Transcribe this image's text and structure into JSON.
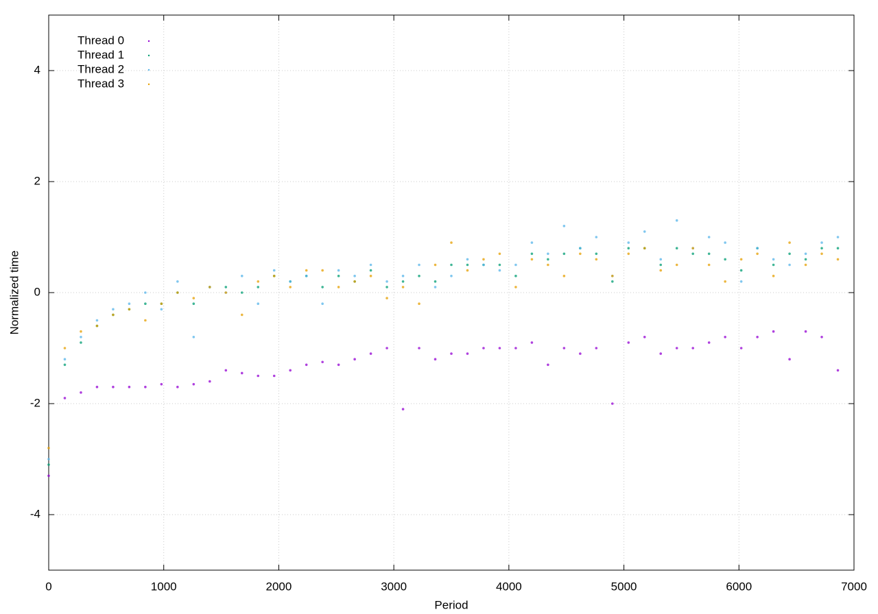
{
  "chart_data": {
    "type": "scatter",
    "xlabel": "Period",
    "ylabel": "Normalized time",
    "xlim": [
      0,
      7000
    ],
    "ylim": [
      -5,
      5
    ],
    "xticks": [
      0,
      1000,
      2000,
      3000,
      4000,
      5000,
      6000,
      7000
    ],
    "yticks": [
      -4,
      -2,
      0,
      2,
      4
    ],
    "grid": true,
    "legend": "top-left",
    "x": [
      0,
      140,
      280,
      420,
      560,
      700,
      840,
      980,
      1120,
      1260,
      1400,
      1540,
      1680,
      1820,
      1960,
      2100,
      2240,
      2380,
      2520,
      2660,
      2800,
      2940,
      3080,
      3220,
      3360,
      3500,
      3640,
      3780,
      3920,
      4060,
      4200,
      4340,
      4480,
      4620,
      4760,
      4900,
      5040,
      5180,
      5320,
      5460,
      5600,
      5740,
      5880,
      6020,
      6160,
      6300,
      6440,
      6580,
      6720,
      6860
    ],
    "series": [
      {
        "name": "Thread 0",
        "color": "#9400d3",
        "values": [
          -3.3,
          -1.9,
          -1.8,
          -1.7,
          -1.7,
          -1.7,
          -1.7,
          -1.65,
          -1.7,
          -1.65,
          -1.6,
          -1.4,
          -1.45,
          -1.5,
          -1.5,
          -1.4,
          -1.3,
          -1.25,
          -1.3,
          -1.2,
          -1.1,
          -1.0,
          -2.1,
          -1.0,
          -1.2,
          -1.1,
          -1.1,
          -1.0,
          -1.0,
          -1.0,
          -0.9,
          -1.3,
          -1.0,
          -1.1,
          -1.0,
          -2.0,
          -0.9,
          -0.8,
          -1.1,
          -1.0,
          -1.0,
          -0.9,
          -0.8,
          -1.0,
          -0.8,
          -0.7,
          -1.2,
          -0.7,
          -0.8,
          -1.4
        ]
      },
      {
        "name": "Thread 1",
        "color": "#009e73",
        "values": [
          -3.1,
          -1.3,
          -0.9,
          -0.6,
          -0.4,
          -0.3,
          -0.2,
          -0.2,
          0.0,
          -0.2,
          0.1,
          0.1,
          0.0,
          0.1,
          0.3,
          0.2,
          0.3,
          0.1,
          0.3,
          0.2,
          0.4,
          0.1,
          0.2,
          0.3,
          0.2,
          0.5,
          0.5,
          0.5,
          0.5,
          0.3,
          0.7,
          0.6,
          0.7,
          0.8,
          0.7,
          0.2,
          0.8,
          0.8,
          0.5,
          0.8,
          0.7,
          0.7,
          0.6,
          0.4,
          0.8,
          0.5,
          0.7,
          0.6,
          0.8,
          0.8
        ]
      },
      {
        "name": "Thread 2",
        "color": "#56b4e9",
        "values": [
          -3.0,
          -1.2,
          -0.8,
          -0.5,
          -0.3,
          -0.2,
          0.0,
          -0.3,
          0.2,
          -0.8,
          0.1,
          0.0,
          0.3,
          -0.2,
          0.4,
          0.2,
          0.3,
          -0.2,
          0.4,
          0.3,
          0.5,
          0.2,
          0.3,
          0.5,
          0.1,
          0.3,
          0.6,
          0.5,
          0.4,
          0.5,
          0.9,
          0.7,
          1.2,
          0.8,
          1.0,
          0.3,
          0.9,
          1.1,
          0.6,
          1.3,
          0.8,
          1.0,
          0.9,
          0.2,
          0.8,
          0.6,
          0.5,
          0.7,
          0.9,
          1.0
        ]
      },
      {
        "name": "Thread 3",
        "color": "#e69f00",
        "values": [
          -2.8,
          -1.0,
          -0.7,
          -0.6,
          -0.4,
          -0.3,
          -0.5,
          -0.2,
          0.0,
          -0.1,
          0.1,
          0.0,
          -0.4,
          0.2,
          0.3,
          0.1,
          0.4,
          0.4,
          0.1,
          0.2,
          0.3,
          -0.1,
          0.1,
          -0.2,
          0.5,
          0.9,
          0.4,
          0.6,
          0.7,
          0.1,
          0.6,
          0.5,
          0.3,
          0.7,
          0.6,
          0.3,
          0.7,
          0.8,
          0.4,
          0.5,
          0.8,
          0.5,
          0.2,
          0.6,
          0.7,
          0.3,
          0.9,
          0.5,
          0.7,
          0.6
        ]
      }
    ]
  }
}
